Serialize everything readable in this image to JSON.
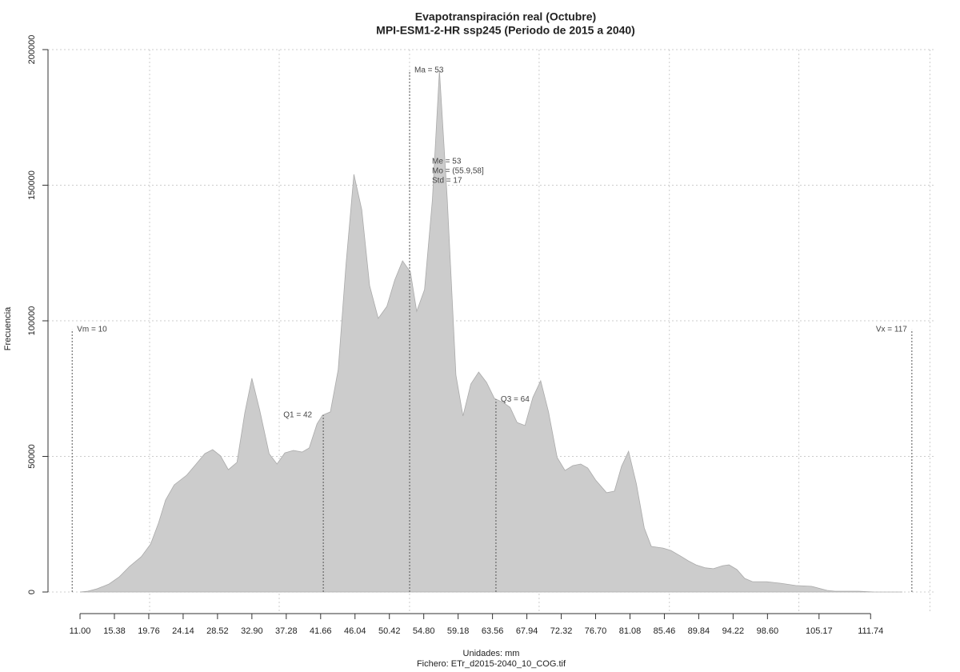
{
  "chart_data": {
    "type": "area",
    "title": "Evapotranspiración real (Octubre)",
    "subtitle": "MPI-ESM1-2-HR ssp245 (Periodo de 2015 a 2040)",
    "x_label": "Unidades: mm",
    "y_label": "Frecuencia",
    "footnote": "Fichero: ETr_d2015-2040_10_COG.tif",
    "color": "#cccccc",
    "x": [
      11.0,
      12.0,
      13.2,
      14.7,
      16.0,
      17.3,
      18.8,
      20.0,
      21.0,
      21.9,
      23.0,
      24.6,
      25.8,
      26.9,
      27.9,
      28.9,
      29.9,
      31.0,
      32.0,
      32.9,
      33.9,
      35.1,
      36.1,
      37.1,
      38.2,
      39.3,
      40.2,
      41.2,
      41.9,
      42.9,
      43.9,
      44.9,
      45.9,
      46.9,
      47.9,
      49.0,
      50.1,
      51.1,
      52.1,
      53.1,
      53.9,
      54.9,
      55.9,
      56.8,
      57.8,
      58.9,
      59.8,
      60.8,
      61.8,
      62.8,
      63.8,
      64.9,
      65.8,
      66.7,
      67.7,
      68.7,
      69.7,
      70.7,
      71.8,
      72.8,
      73.8,
      74.8,
      75.7,
      76.7,
      78.1,
      79.1,
      80.0,
      80.9,
      81.9,
      82.9,
      83.8,
      85.3,
      86.3,
      87.5,
      88.5,
      89.5,
      90.7,
      91.7,
      92.9,
      93.7,
      94.7,
      95.7,
      96.7,
      98.5,
      100.3,
      102.2,
      104.2,
      106.2,
      107.2,
      110.2,
      112.2,
      115.8
    ],
    "values": [
      0,
      300,
      1200,
      2950,
      5600,
      9400,
      13000,
      17700,
      25400,
      33900,
      39500,
      43100,
      47200,
      51000,
      52500,
      50200,
      45100,
      47800,
      66100,
      78800,
      67000,
      51000,
      47200,
      51300,
      52200,
      51600,
      53100,
      62000,
      65200,
      66400,
      82000,
      121000,
      154000,
      141000,
      113000,
      100900,
      105300,
      115000,
      122100,
      118000,
      103500,
      111500,
      144600,
      192300,
      144600,
      80000,
      64900,
      76700,
      81100,
      77300,
      71400,
      69900,
      68100,
      62500,
      61400,
      71700,
      77900,
      66400,
      49600,
      44800,
      46600,
      47200,
      45700,
      41300,
      36600,
      37200,
      46300,
      51900,
      39800,
      23600,
      16800,
      16200,
      15300,
      13300,
      11500,
      10000,
      8900,
      8600,
      9700,
      10000,
      8300,
      5000,
      3800,
      3800,
      3200,
      2400,
      2100,
      600,
      300,
      300,
      0,
      0
    ],
    "xlim": [
      6.92,
      119.87
    ],
    "ylim": [
      0,
      200000
    ],
    "yticks": [
      0,
      50000,
      100000,
      150000,
      200000
    ],
    "xticks": [
      {
        "value": 11.0,
        "label": "11.00"
      },
      {
        "value": 15.38,
        "label": "15.38"
      },
      {
        "value": 19.76,
        "label": "19.76"
      },
      {
        "value": 24.14,
        "label": "24.14"
      },
      {
        "value": 28.52,
        "label": "28.52"
      },
      {
        "value": 32.9,
        "label": "32.90"
      },
      {
        "value": 37.28,
        "label": "37.28"
      },
      {
        "value": 41.66,
        "label": "41.66"
      },
      {
        "value": 46.04,
        "label": "46.04"
      },
      {
        "value": 50.42,
        "label": "50.42"
      },
      {
        "value": 54.8,
        "label": "54.80"
      },
      {
        "value": 59.18,
        "label": "59.18"
      },
      {
        "value": 63.56,
        "label": "63.56"
      },
      {
        "value": 67.94,
        "label": "67.94"
      },
      {
        "value": 72.32,
        "label": "72.32"
      },
      {
        "value": 76.7,
        "label": "76.70"
      },
      {
        "value": 81.08,
        "label": "81.08"
      },
      {
        "value": 85.46,
        "label": "85.46"
      },
      {
        "value": 89.84,
        "label": "89.84"
      },
      {
        "value": 94.22,
        "label": "94.22"
      },
      {
        "value": 98.6,
        "label": "98.60"
      },
      {
        "value": 105.17,
        "label": "105.17"
      },
      {
        "value": 111.74,
        "label": "111.74"
      }
    ],
    "xgrid": [
      19.87,
      36.38,
      52.99,
      69.5,
      86.1,
      102.6,
      119.3
    ],
    "grid": true,
    "markers": [
      {
        "label": "Vm = 10",
        "x": 10,
        "y": 96800
      },
      {
        "label": "Q1 = 42",
        "x": 42,
        "y": 65200
      },
      {
        "label": "Ma = 53",
        "x": 53,
        "y": 192300
      },
      {
        "label": "Q3 = 64",
        "x": 64,
        "y": 71000
      },
      {
        "label": "Vx = 117",
        "x": 117,
        "y": 96800
      }
    ],
    "stats": [
      "Me = 53",
      "Mo = (55.9,58]",
      "Std = 17"
    ]
  }
}
